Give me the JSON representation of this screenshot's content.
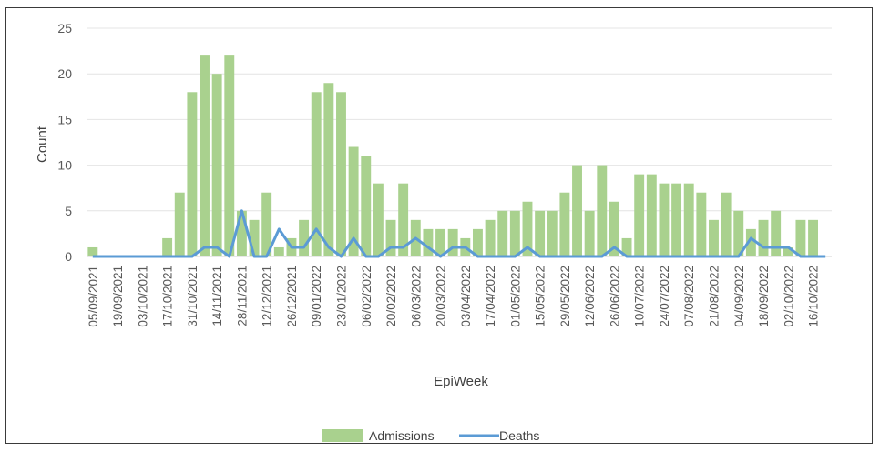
{
  "chart_data": {
    "type": "bar",
    "title": "",
    "xlabel": "EpiWeek",
    "ylabel": "Count",
    "ylim": [
      0,
      25
    ],
    "yticks": [
      0,
      5,
      10,
      15,
      20,
      25
    ],
    "grid": true,
    "legend_placement": "bottom-center",
    "x_tick_labels": [
      "05/09/2021",
      "19/09/2021",
      "03/10/2021",
      "17/10/2021",
      "31/10/2021",
      "14/11/2021",
      "28/11/2021",
      "12/12/2021",
      "26/12/2021",
      "09/01/2022",
      "23/01/2022",
      "06/02/2022",
      "20/02/2022",
      "06/03/2022",
      "20/03/2022",
      "03/04/2022",
      "17/04/2022",
      "01/05/2022",
      "15/05/2022",
      "29/05/2022",
      "12/06/2022",
      "26/06/2022",
      "10/07/2022",
      "24/07/2022",
      "07/08/2022",
      "21/08/2022",
      "04/09/2022",
      "18/09/2022",
      "02/10/2022",
      "16/10/2022"
    ],
    "series": [
      {
        "name": "Admissions",
        "kind": "bar",
        "color": "#a9d18e",
        "values": [
          1,
          0,
          0,
          0,
          0,
          0,
          2,
          7,
          18,
          22,
          20,
          22,
          5,
          4,
          7,
          1,
          2,
          4,
          18,
          19,
          18,
          12,
          11,
          8,
          4,
          8,
          4,
          3,
          3,
          3,
          2,
          3,
          4,
          5,
          5,
          6,
          5,
          5,
          7,
          10,
          5,
          10,
          6,
          2,
          9,
          9,
          8,
          8,
          8,
          7,
          4,
          7,
          5,
          3,
          4,
          5,
          1,
          4,
          4,
          0
        ]
      },
      {
        "name": "Deaths",
        "kind": "line",
        "color": "#5b9bd5",
        "values": [
          0,
          0,
          0,
          0,
          0,
          0,
          0,
          0,
          0,
          1,
          1,
          0,
          5,
          0,
          0,
          3,
          1,
          1,
          3,
          1,
          0,
          2,
          0,
          0,
          1,
          1,
          2,
          1,
          0,
          1,
          1,
          0,
          0,
          0,
          0,
          1,
          0,
          0,
          0,
          0,
          0,
          0,
          1,
          0,
          0,
          0,
          0,
          0,
          0,
          0,
          0,
          0,
          0,
          2,
          1,
          1,
          1,
          0,
          0,
          0
        ]
      }
    ]
  },
  "legend": {
    "admissions_label": "Admissions",
    "deaths_label": "Deaths"
  }
}
